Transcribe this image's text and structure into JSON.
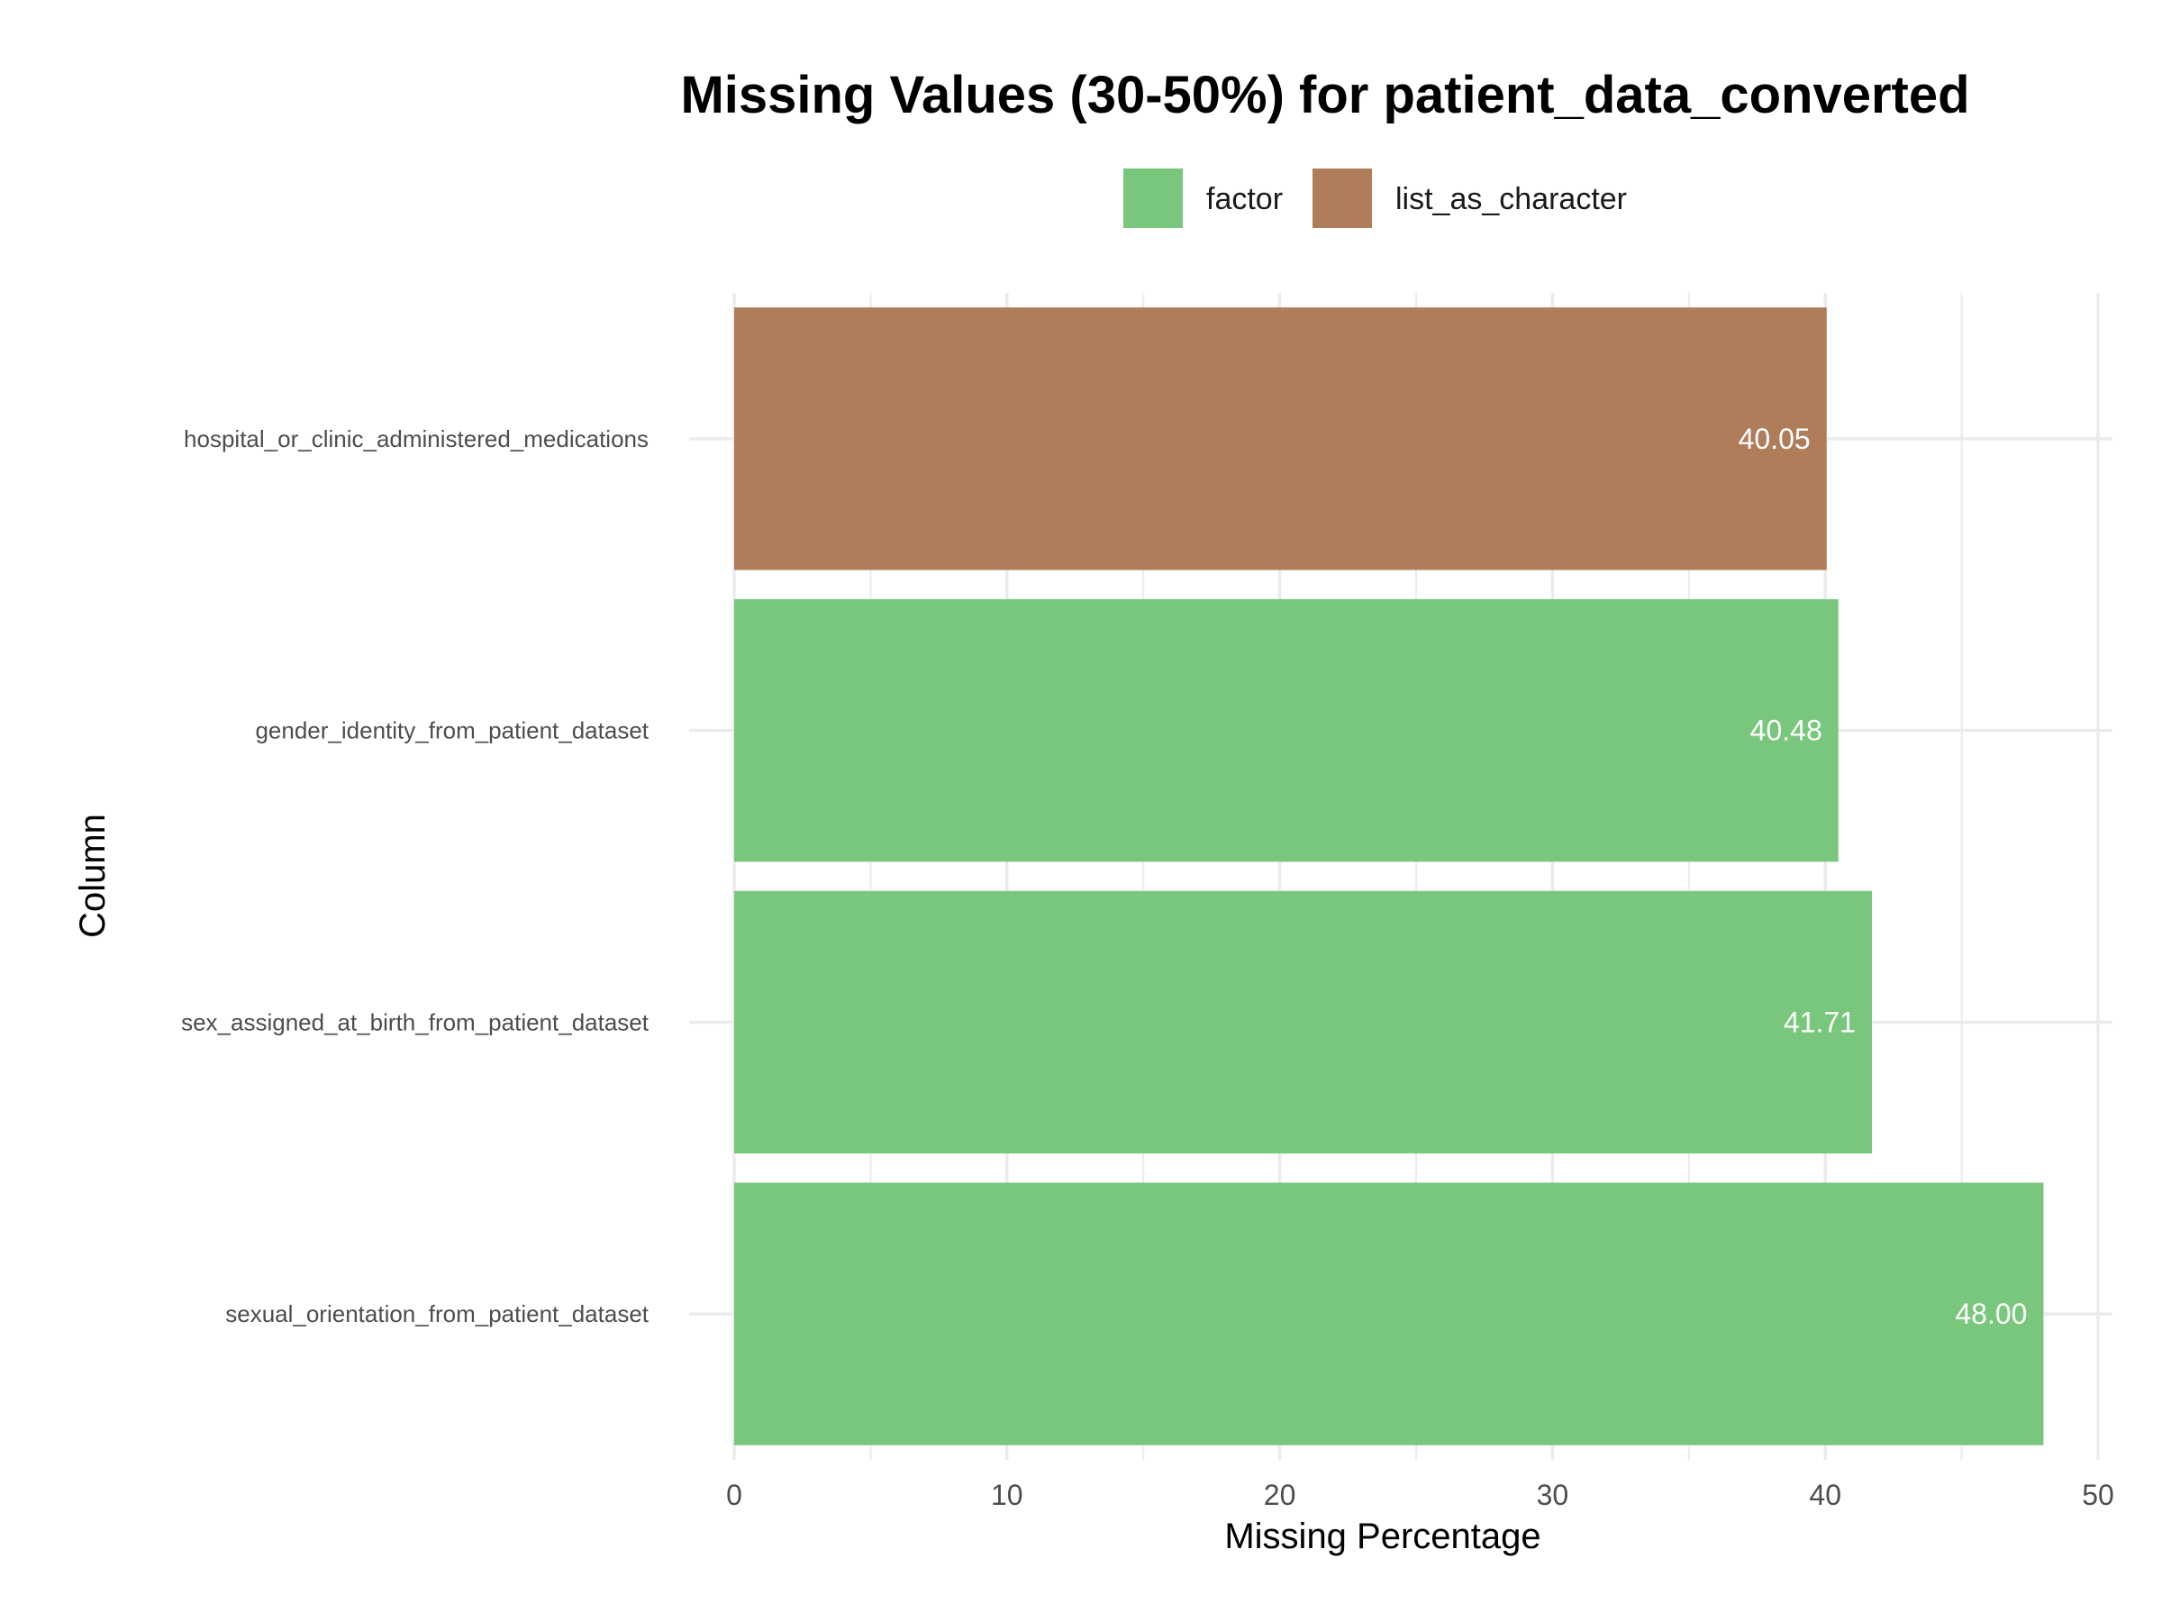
{
  "chart_data": {
    "type": "bar",
    "orientation": "horizontal",
    "title": "Missing Values (30-50%) for patient_data_converted",
    "xlabel": "Missing Percentage",
    "ylabel": "Column",
    "xlim": [
      0,
      50
    ],
    "x_ticks": [
      0,
      10,
      20,
      30,
      40,
      50
    ],
    "grid": true,
    "legend_position": "top",
    "legend": [
      {
        "name": "factor",
        "color": "#78c77c"
      },
      {
        "name": "list_as_character",
        "color": "#af7d5a"
      }
    ],
    "bars": [
      {
        "category": "hospital_or_clinic_administered_medications",
        "value": 40.05,
        "label": "40.05",
        "type": "list_as_character"
      },
      {
        "category": "gender_identity_from_patient_dataset",
        "value": 40.48,
        "label": "40.48",
        "type": "factor"
      },
      {
        "category": "sex_assigned_at_birth_from_patient_dataset",
        "value": 41.71,
        "label": "41.71",
        "type": "factor"
      },
      {
        "category": "sexual_orientation_from_patient_dataset",
        "value": 48.0,
        "label": "48.00",
        "type": "factor"
      }
    ]
  }
}
